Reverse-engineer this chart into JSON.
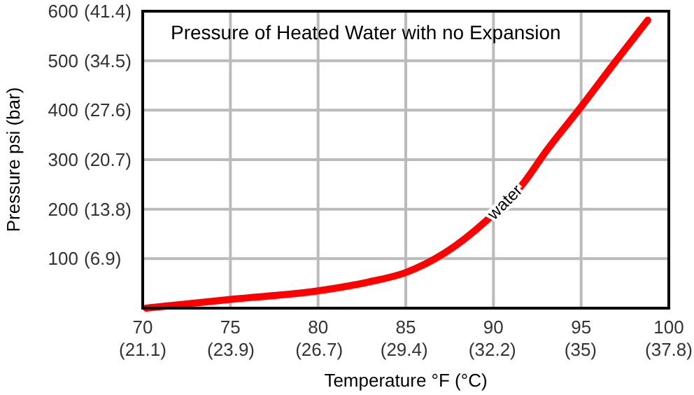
{
  "chart_data": {
    "type": "line",
    "title": "Pressure of Heated Water with no Expansion",
    "xlabel": "Temperature °F (°C)",
    "ylabel": "Pressure psi (bar)",
    "x": [
      70.2,
      75.1,
      80,
      82.9,
      85,
      87.2,
      89.6,
      91.7,
      93,
      95,
      97,
      98.8
    ],
    "series": [
      {
        "name": "water",
        "color": "#ff0000",
        "values": [
          0,
          18,
          35,
          53,
          72,
          111,
          177,
          252,
          317,
          407,
          500,
          582
        ]
      }
    ],
    "xlim": [
      70,
      100
    ],
    "ylim": [
      0,
      600
    ],
    "xticks": [
      70,
      75,
      80,
      85,
      90,
      95,
      100
    ],
    "yticks": [
      100,
      200,
      300,
      400,
      500,
      600
    ],
    "x2lim": [
      21.1,
      37.8
    ],
    "x2ticks": [
      {
        "value": 21.1,
        "label": "(21.1)"
      },
      {
        "value": 23.9,
        "label": "(23.9)"
      },
      {
        "value": 26.7,
        "label": "(26.7)"
      },
      {
        "value": 29.4,
        "label": "(29.4)"
      },
      {
        "value": 32.2,
        "label": "(32.2)"
      },
      {
        "value": 35,
        "label": "(35)"
      },
      {
        "value": 37.8,
        "label": "(37.8)"
      }
    ],
    "y2lim": [
      0,
      41.4
    ],
    "y2ticks": [
      {
        "value": 6.9,
        "label": "(6.9)"
      },
      {
        "value": 13.8,
        "label": "(13.8)"
      },
      {
        "value": 20.7,
        "label": "(20.7)"
      },
      {
        "value": 27.6,
        "label": "(27.6)"
      },
      {
        "value": 34.5,
        "label": "(34.5)"
      },
      {
        "value": 41.4,
        "label": "(41.4)"
      }
    ],
    "grid": true,
    "line_style": "solid",
    "marker": "none"
  }
}
